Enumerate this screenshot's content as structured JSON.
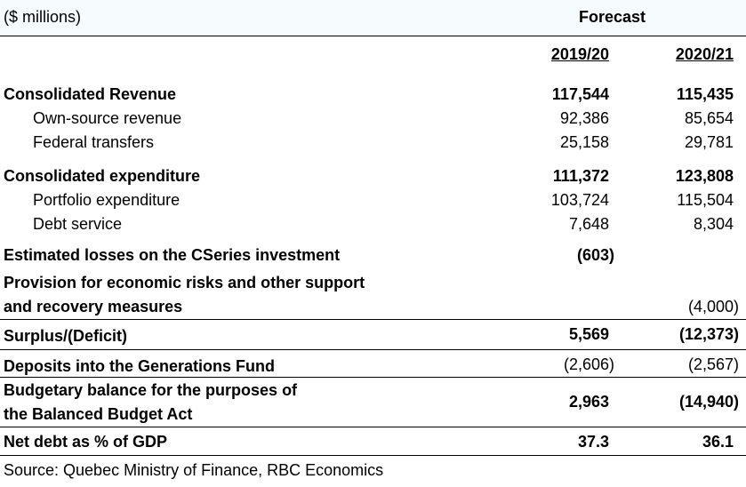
{
  "header": {
    "units": "($ millions)",
    "forecast": "Forecast",
    "year1": "2019/20",
    "year2": "2020/21"
  },
  "rows": {
    "cons_revenue": {
      "label": "Consolidated Revenue",
      "v1": "117,544",
      "v2": "115,435"
    },
    "own_source": {
      "label": "Own-source revenue",
      "v1": "92,386",
      "v2": "85,654"
    },
    "federal": {
      "label": "Federal transfers",
      "v1": "25,158",
      "v2": "29,781"
    },
    "cons_exp": {
      "label": "Consolidated expenditure",
      "v1": "111,372",
      "v2": "123,808"
    },
    "portfolio": {
      "label": "Portfolio expenditure",
      "v1": "103,724",
      "v2": "115,504"
    },
    "debt_service": {
      "label": "Debt service",
      "v1": "7,648",
      "v2": "8,304"
    },
    "cseries": {
      "label": "Estimated losses on the CSeries investment",
      "v1": "(603)",
      "v2": ""
    },
    "provision": {
      "label1": "Provision for economic risks and other support",
      "label2": "and recovery measures",
      "v1": "",
      "v2": "(4,000)"
    },
    "surplus": {
      "label": "Surplus/(Deficit)",
      "v1": "5,569",
      "v2": "(12,373)"
    },
    "deposits": {
      "label": "Deposits into the Generations Fund",
      "v1": "(2,606)",
      "v2": "(2,567)"
    },
    "budgetary": {
      "label1": "Budgetary balance for the purposes of",
      "label2": "the Balanced Budget Act",
      "v1": "2,963",
      "v2": "(14,940)"
    },
    "net_debt": {
      "label": "Net debt as % of GDP",
      "v1": "37.3",
      "v2": "36.1"
    }
  },
  "source": "Source: Quebec Ministry of Finance, RBC Economics"
}
